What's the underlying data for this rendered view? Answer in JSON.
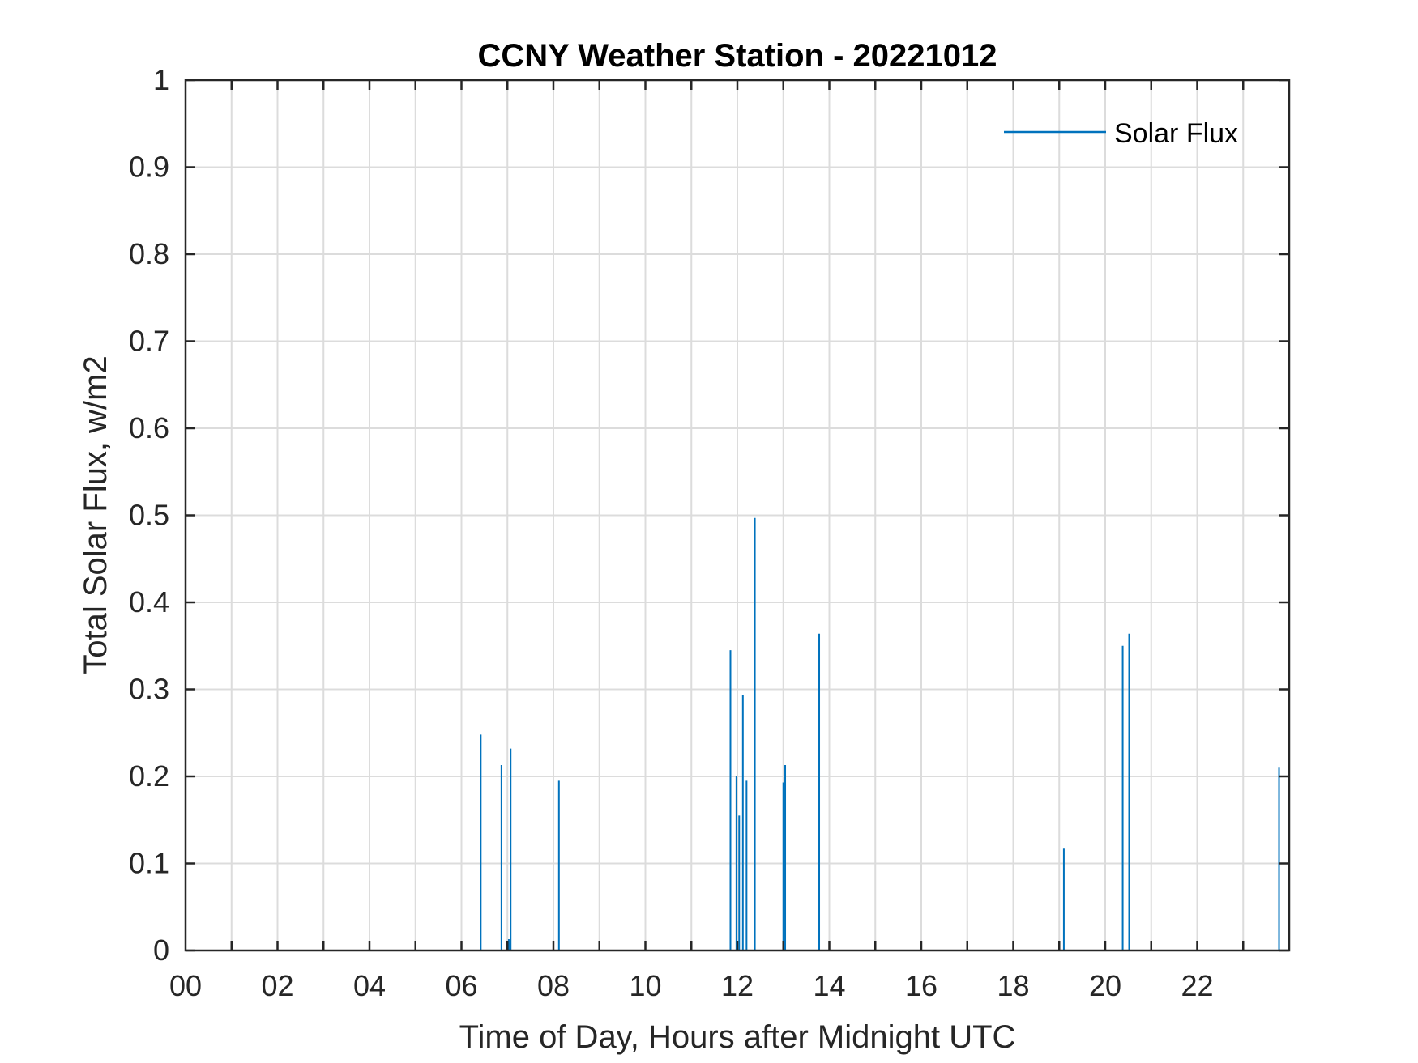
{
  "chart_data": {
    "type": "line",
    "title": "CCNY Weather Station - 20221012",
    "xlabel": "Time of Day, Hours after Midnight UTC",
    "ylabel": "Total Solar Flux, w/m2",
    "xlim": [
      0,
      24
    ],
    "ylim": [
      0,
      1
    ],
    "x_ticks": [
      0,
      2,
      4,
      6,
      8,
      10,
      12,
      14,
      16,
      18,
      20,
      22
    ],
    "x_tick_labels": [
      "00",
      "02",
      "04",
      "06",
      "08",
      "10",
      "12",
      "14",
      "16",
      "18",
      "20",
      "22"
    ],
    "x_minor_grid_step": 1,
    "y_ticks": [
      0,
      0.1,
      0.2,
      0.3,
      0.4,
      0.5,
      0.6,
      0.7,
      0.8,
      0.9,
      1
    ],
    "y_tick_labels": [
      "0",
      "0.1",
      "0.2",
      "0.3",
      "0.4",
      "0.5",
      "0.6",
      "0.7",
      "0.8",
      "0.9",
      "1"
    ],
    "grid": true,
    "legend": {
      "position": "top-right",
      "entries": [
        "Solar Flux"
      ]
    },
    "series": [
      {
        "name": "Solar Flux",
        "color": "#0072BD",
        "spikes": [
          {
            "x": 6.42,
            "y": 0.248
          },
          {
            "x": 6.87,
            "y": 0.213
          },
          {
            "x": 7.03,
            "y": 0.013
          },
          {
            "x": 7.07,
            "y": 0.232
          },
          {
            "x": 8.12,
            "y": 0.195
          },
          {
            "x": 11.85,
            "y": 0.345
          },
          {
            "x": 11.98,
            "y": 0.2
          },
          {
            "x": 12.04,
            "y": 0.155
          },
          {
            "x": 12.12,
            "y": 0.293
          },
          {
            "x": 12.2,
            "y": 0.195
          },
          {
            "x": 12.38,
            "y": 0.497
          },
          {
            "x": 13.0,
            "y": 0.193
          },
          {
            "x": 13.04,
            "y": 0.213
          },
          {
            "x": 13.78,
            "y": 0.364
          },
          {
            "x": 19.1,
            "y": 0.117
          },
          {
            "x": 20.38,
            "y": 0.35
          },
          {
            "x": 20.52,
            "y": 0.364
          },
          {
            "x": 23.78,
            "y": 0.21
          }
        ]
      }
    ]
  }
}
